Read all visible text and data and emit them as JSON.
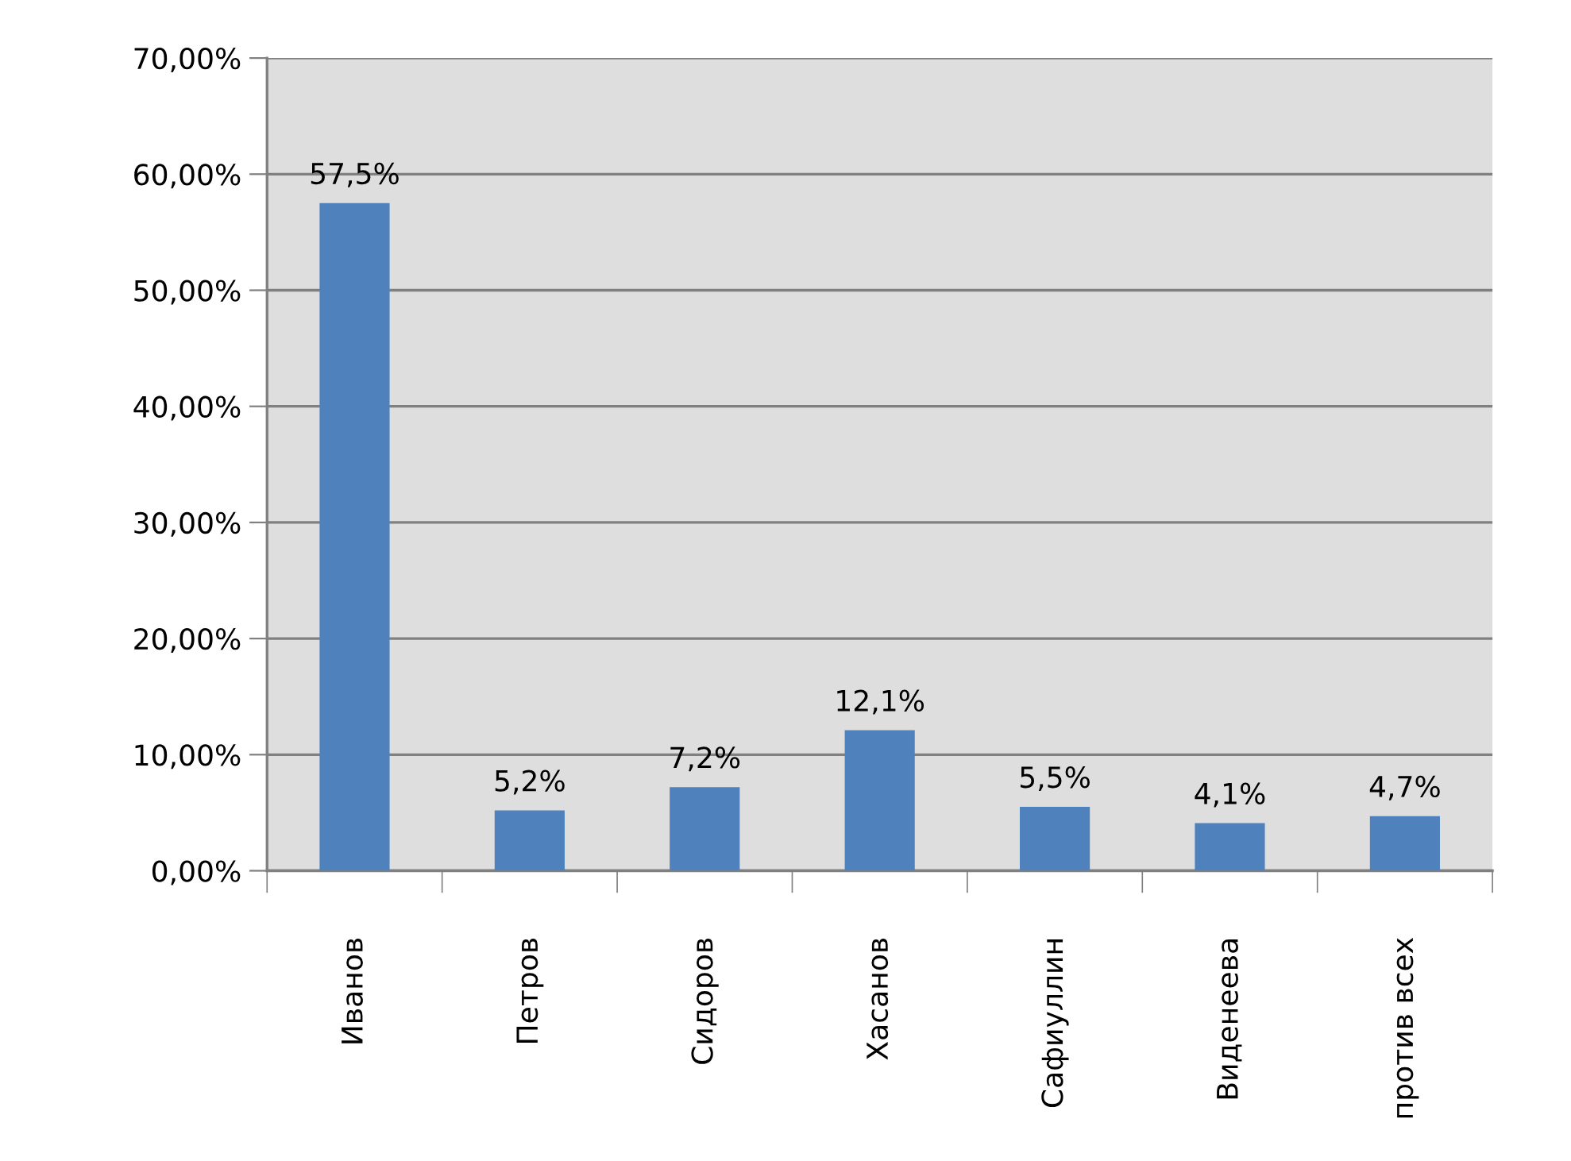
{
  "chart_data": {
    "type": "bar",
    "categories": [
      "Иванов",
      "Петров",
      "Сидоров",
      "Хасанов",
      "Сафиуллин",
      "Виденеева",
      "против всех"
    ],
    "values": [
      57.5,
      5.2,
      7.2,
      12.1,
      5.5,
      4.1,
      4.7
    ],
    "value_labels": [
      "57,5%",
      "5,2%",
      "7,2%",
      "12,1%",
      "5,5%",
      "4,1%",
      "4,7%"
    ],
    "color": "#4f81bd",
    "ylim": [
      0,
      70
    ],
    "yticks": [
      {
        "value": 0,
        "label": "0,00%"
      },
      {
        "value": 10,
        "label": "10,00%"
      },
      {
        "value": 20,
        "label": "20,00%"
      },
      {
        "value": 30,
        "label": "30,00%"
      },
      {
        "value": 40,
        "label": "40,00%"
      },
      {
        "value": 50,
        "label": "50,00%"
      },
      {
        "value": 60,
        "label": "60,00%"
      },
      {
        "value": 70,
        "label": "70,00%"
      }
    ],
    "grid": "y",
    "legend": false
  }
}
